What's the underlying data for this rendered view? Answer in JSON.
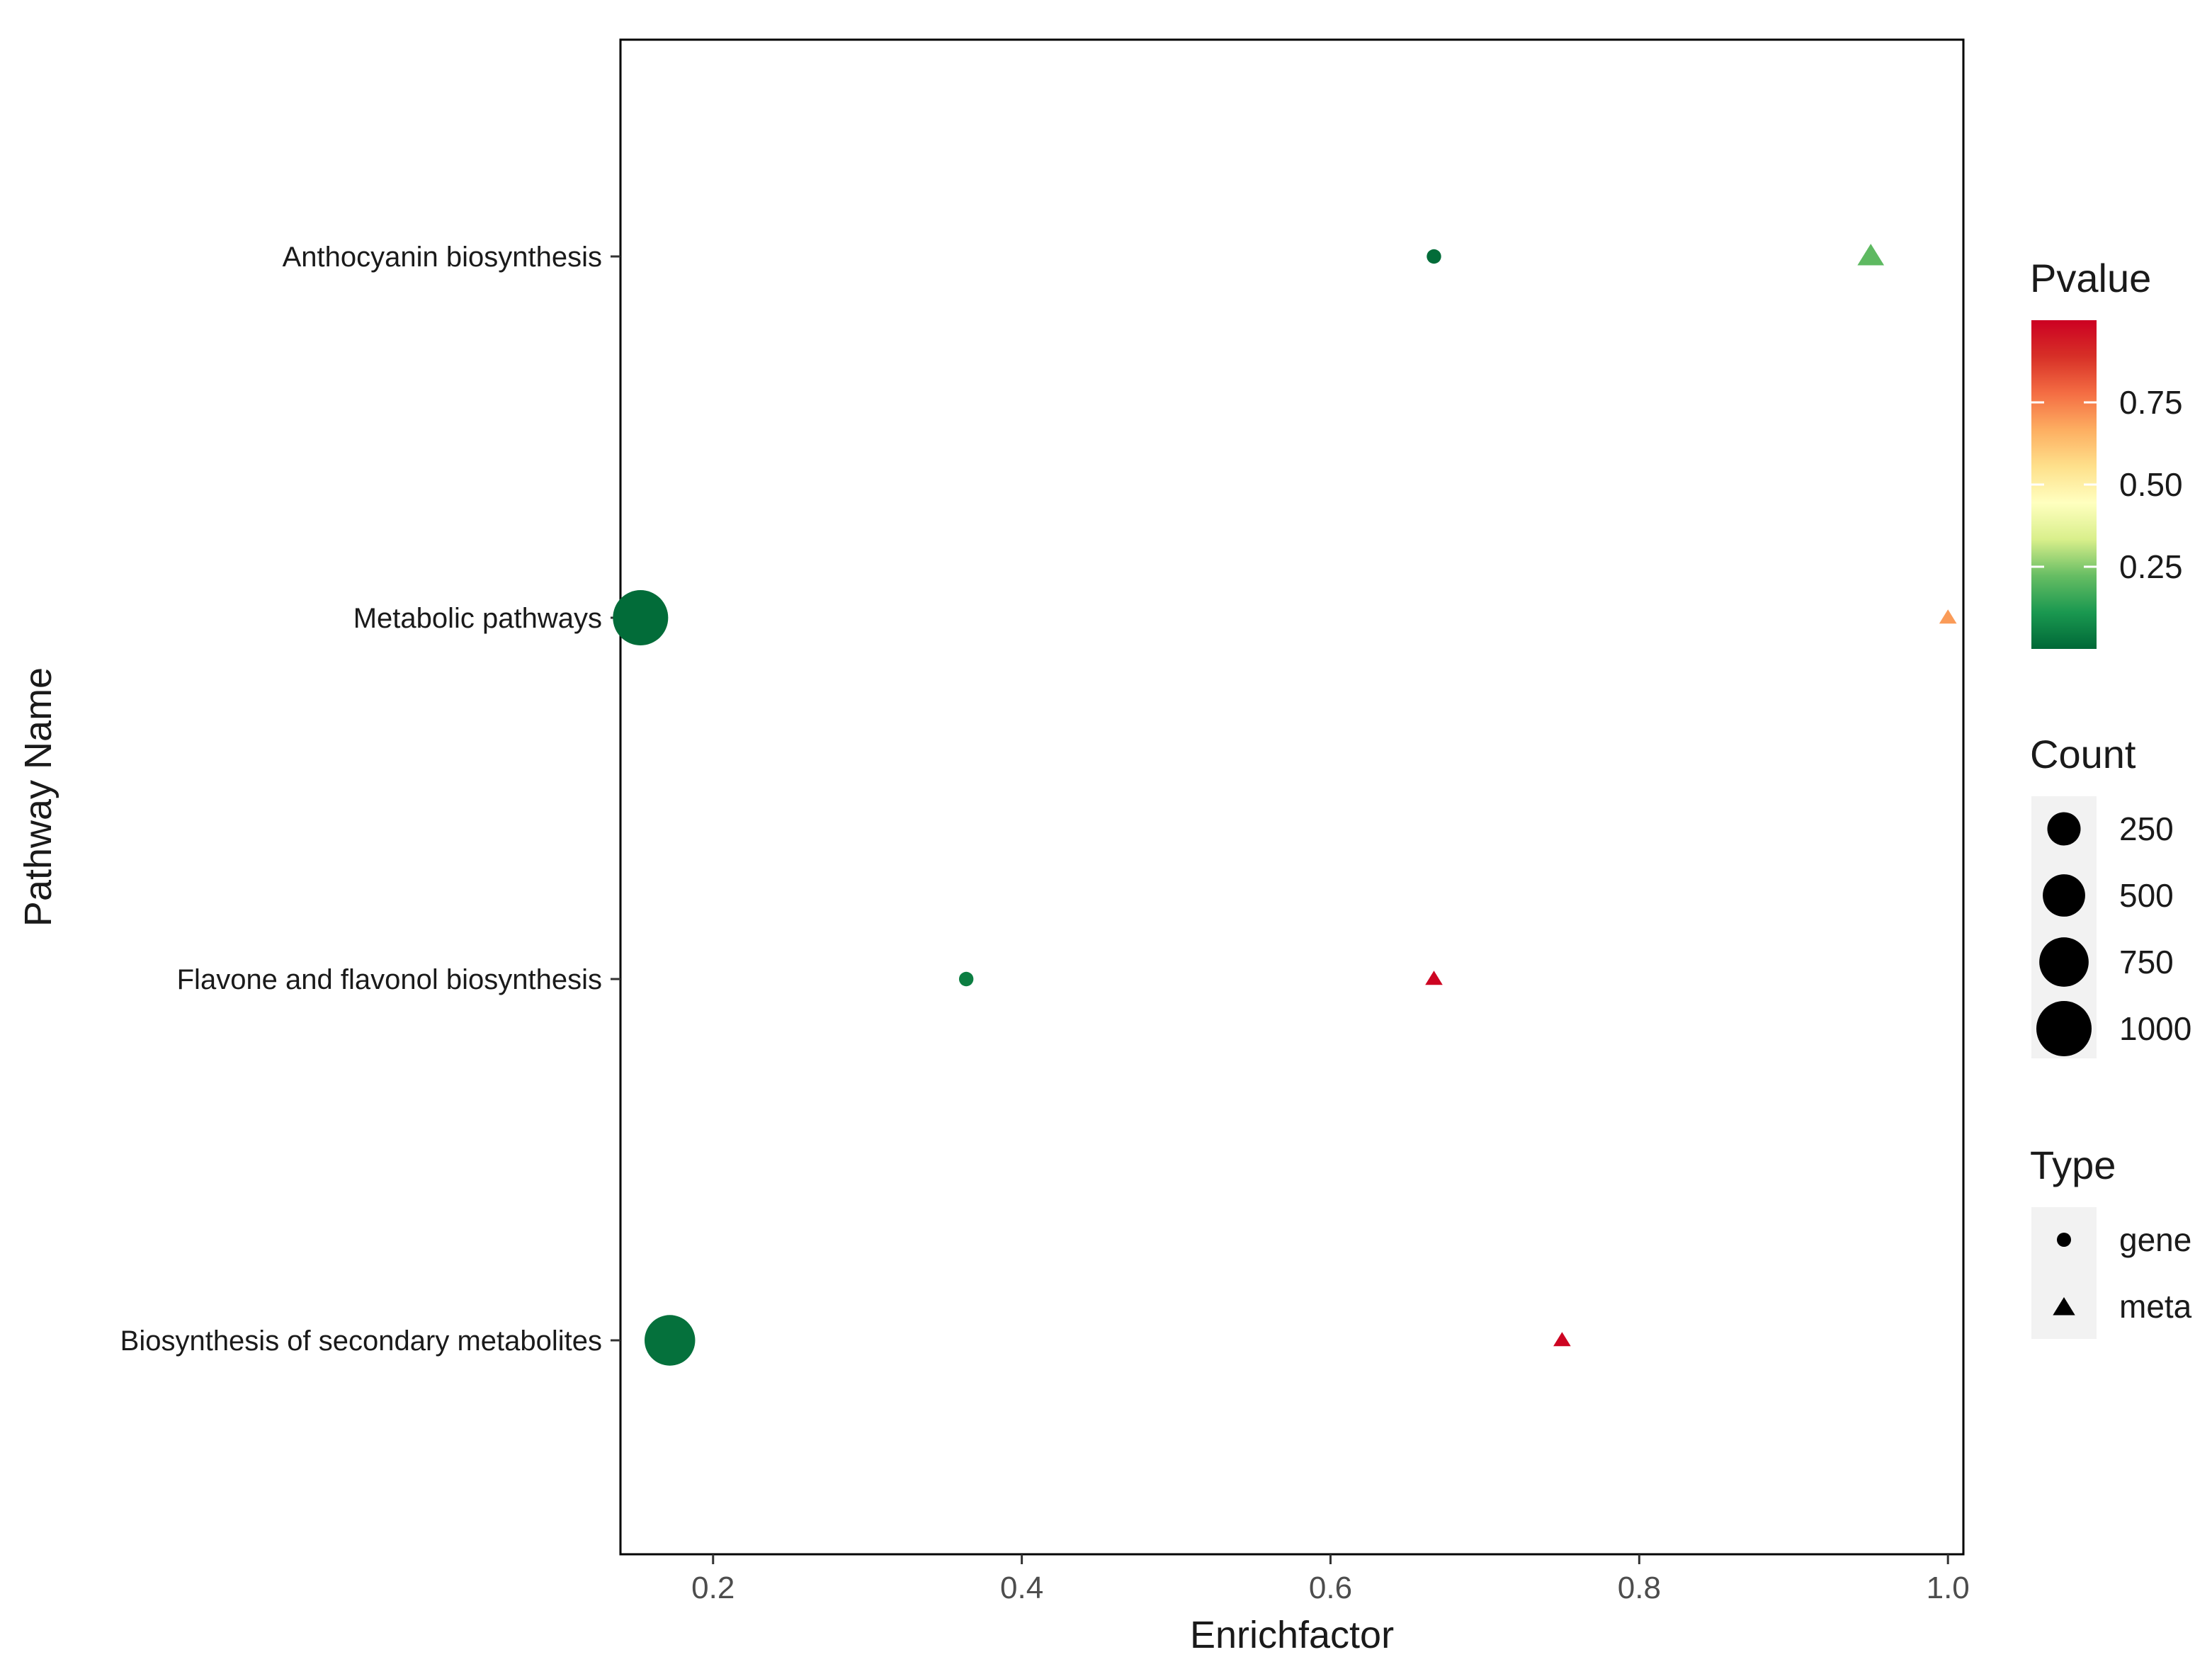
{
  "chart_data": {
    "type": "scatter",
    "title": "",
    "xlabel": "Enrichfactor",
    "ylabel": "Pathway Name",
    "xlim": [
      0.14,
      1.01
    ],
    "x_ticks": [
      {
        "value": 0.2,
        "label": "0.2"
      },
      {
        "value": 0.4,
        "label": "0.4"
      },
      {
        "value": 0.6,
        "label": "0.6"
      },
      {
        "value": 0.8,
        "label": "0.8"
      },
      {
        "value": 1.0,
        "label": "1.0"
      }
    ],
    "categories": [
      "Anthocyanin biosynthesis",
      "Metabolic pathways",
      "Flavone and flavonol biosynthesis",
      "Biosynthesis of secondary metabolites"
    ],
    "points": [
      {
        "pathway": "Anthocyanin biosynthesis",
        "x": 0.667,
        "type": "gene",
        "count": 5,
        "pvalue": 0.01
      },
      {
        "pathway": "Anthocyanin biosynthesis",
        "x": 0.95,
        "type": "meta",
        "count": 60,
        "pvalue": 0.21
      },
      {
        "pathway": "Metabolic pathways",
        "x": 0.153,
        "type": "gene",
        "count": 1000,
        "pvalue": 0.01
      },
      {
        "pathway": "Metabolic pathways",
        "x": 1.0,
        "type": "meta",
        "count": 5,
        "pvalue": 0.7
      },
      {
        "pathway": "Flavone and flavonol biosynthesis",
        "x": 0.364,
        "type": "gene",
        "count": 5,
        "pvalue": 0.05
      },
      {
        "pathway": "Flavone and flavonol biosynthesis",
        "x": 0.667,
        "type": "meta",
        "count": 5,
        "pvalue": 0.99
      },
      {
        "pathway": "Biosynthesis of secondary metabolites",
        "x": 0.172,
        "type": "gene",
        "count": 800,
        "pvalue": 0.02
      },
      {
        "pathway": "Biosynthesis of secondary metabolites",
        "x": 0.75,
        "type": "meta",
        "count": 5,
        "pvalue": 0.99
      }
    ],
    "legend": {
      "placement": "right",
      "pvalue": {
        "title": "Pvalue",
        "range": [
          0.0,
          1.0
        ],
        "ticks": [
          {
            "value": 0.25,
            "label": "0.25"
          },
          {
            "value": 0.5,
            "label": "0.50"
          },
          {
            "value": 0.75,
            "label": "0.75"
          }
        ],
        "color_stops": [
          "#006837",
          "#1a9850",
          "#66bd63",
          "#d9ef8b",
          "#ffffbf",
          "#fee08b",
          "#fdae61",
          "#f46d43",
          "#d73027",
          "#cc0022"
        ]
      },
      "count": {
        "title": "Count",
        "items": [
          {
            "value": 250,
            "label": "250"
          },
          {
            "value": 500,
            "label": "500"
          },
          {
            "value": 750,
            "label": "750"
          },
          {
            "value": 1000,
            "label": "1000"
          }
        ]
      },
      "type": {
        "title": "Type",
        "items": [
          {
            "shape": "circle",
            "label": "gene"
          },
          {
            "shape": "triangle",
            "label": "meta"
          }
        ]
      }
    },
    "grid": false
  }
}
